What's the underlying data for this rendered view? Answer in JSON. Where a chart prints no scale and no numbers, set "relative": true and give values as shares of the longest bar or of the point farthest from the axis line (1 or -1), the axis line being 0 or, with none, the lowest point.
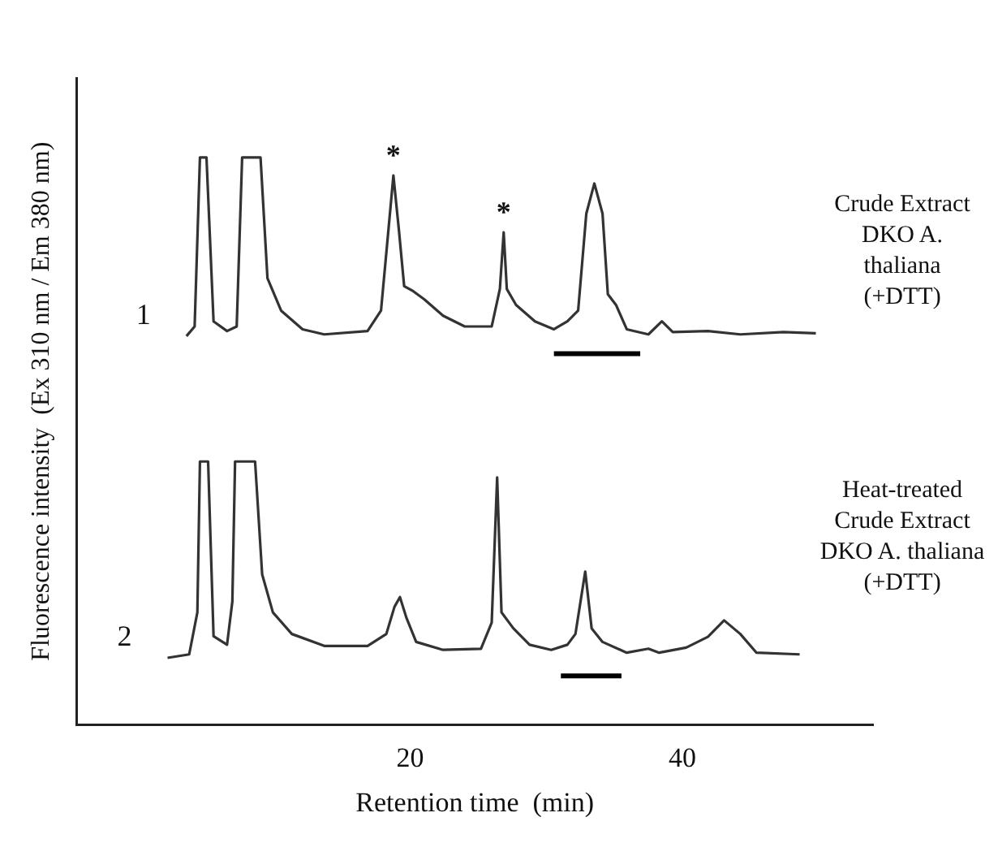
{
  "chart_data": {
    "type": "line",
    "relative": true,
    "xlabel": "Retention time  (min)",
    "ylabel": "Fluorescence intensity  (Ex 310 nm / Em 380 nm)",
    "xlim": [
      -4.5,
      54
    ],
    "xticks": [
      20,
      40
    ],
    "grid": false,
    "legend": false,
    "marker": "none",
    "series": [
      {
        "name": "1",
        "color": "#333333",
        "x": [
          3.57,
          4.17,
          4.56,
          5.04,
          5.56,
          6.55,
          7.26,
          7.66,
          9.01,
          9.52,
          10.52,
          12.1,
          13.69,
          16.87,
          17.86,
          18.37,
          18.77,
          19.17,
          19.56,
          20.24,
          21.03,
          22.42,
          24.01,
          25.99,
          26.59,
          26.87,
          27.1,
          27.78,
          29.17,
          30.56,
          31.55,
          32.34,
          32.94,
          33.53,
          34.13,
          34.52,
          35.12,
          35.91,
          37.5,
          38.49,
          39.29,
          41.87,
          44.25,
          47.42,
          49.8
        ],
        "values": [
          0.685,
          0.702,
          1,
          1,
          0.711,
          0.694,
          0.702,
          1,
          1,
          0.787,
          0.73,
          0.697,
          0.688,
          0.694,
          0.73,
          0.863,
          0.968,
          0.873,
          0.773,
          0.764,
          0.75,
          0.721,
          0.702,
          0.702,
          0.768,
          0.868,
          0.768,
          0.74,
          0.711,
          0.697,
          0.711,
          0.73,
          0.901,
          0.954,
          0.901,
          0.759,
          0.74,
          0.697,
          0.688,
          0.711,
          0.692,
          0.694,
          0.688,
          0.692,
          0.69
        ]
      },
      {
        "name": "2",
        "color": "#333333",
        "x": [
          2.18,
          3.77,
          4.37,
          4.56,
          5.16,
          5.56,
          6.55,
          6.94,
          7.14,
          8.61,
          9.13,
          9.92,
          11.31,
          13.69,
          16.87,
          18.25,
          18.85,
          19.25,
          19.72,
          20.44,
          22.42,
          25.2,
          25.99,
          26.39,
          26.71,
          27.58,
          28.77,
          30.36,
          31.55,
          32.14,
          32.86,
          33.33,
          34.13,
          35.91,
          37.5,
          38.29,
          40.28,
          41.87,
          43.06,
          44.25,
          45.44,
          48.61
        ],
        "values": [
          0.118,
          0.124,
          0.198,
          0.464,
          0.464,
          0.156,
          0.141,
          0.217,
          0.464,
          0.464,
          0.265,
          0.198,
          0.16,
          0.139,
          0.139,
          0.16,
          0.208,
          0.225,
          0.189,
          0.146,
          0.132,
          0.134,
          0.18,
          0.436,
          0.198,
          0.17,
          0.141,
          0.132,
          0.141,
          0.16,
          0.27,
          0.17,
          0.146,
          0.127,
          0.134,
          0.127,
          0.136,
          0.155,
          0.184,
          0.16,
          0.127,
          0.124
        ]
      },
      {
        "color": "#000000",
        "x": [
          30.56,
          36.9
        ],
        "values": [
          0.654,
          0.654
        ]
      },
      {
        "color": "#000000",
        "x": [
          31.07,
          35.52
        ],
        "values": [
          0.086,
          0.086
        ]
      }
    ],
    "annotations": [
      "Crude Extract\nDKO A.\nthaliana\n(+DTT)",
      "Heat-treated\nCrude Extract\nDKO A. thaliana\n(+DTT)",
      {
        "text": "*",
        "x": 18.77,
        "y": 0.968
      },
      {
        "text": "*",
        "x": 26.87,
        "y": 0.868
      }
    ]
  }
}
